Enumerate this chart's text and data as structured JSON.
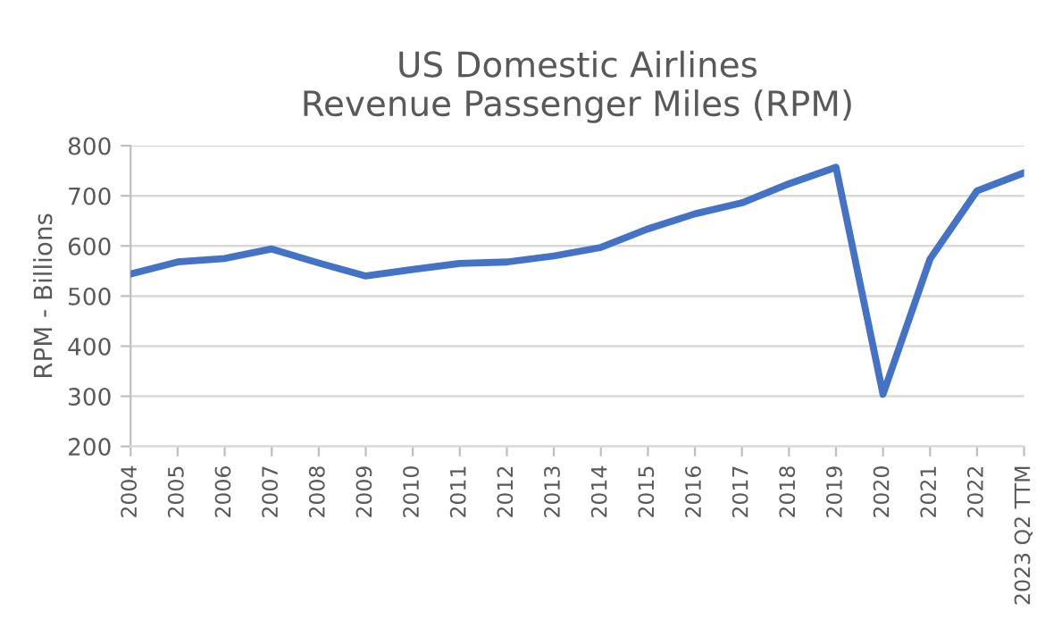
{
  "chart_data": {
    "type": "line",
    "title": "US Domestic Airlines\nRevenue Passenger Miles (RPM)",
    "ylabel": "RPM - Billions",
    "categories": [
      "2004",
      "2005",
      "2006",
      "2007",
      "2008",
      "2009",
      "2010",
      "2011",
      "2012",
      "2013",
      "2014",
      "2015",
      "2016",
      "2017",
      "2018",
      "2019",
      "2020",
      "2021",
      "2022",
      "2023 Q2 TTM"
    ],
    "series": [
      {
        "color": "#4472c4",
        "values": [
          544,
          568,
          575,
          594,
          566,
          540,
          553,
          565,
          568,
          580,
          597,
          634,
          664,
          686,
          724,
          757,
          304,
          574,
          710,
          746
        ]
      }
    ],
    "ylim": [
      200,
      800
    ],
    "yticks": [
      200,
      300,
      400,
      500,
      600,
      700,
      800
    ],
    "grid": "y",
    "marker": "none",
    "line_style": "solid"
  }
}
